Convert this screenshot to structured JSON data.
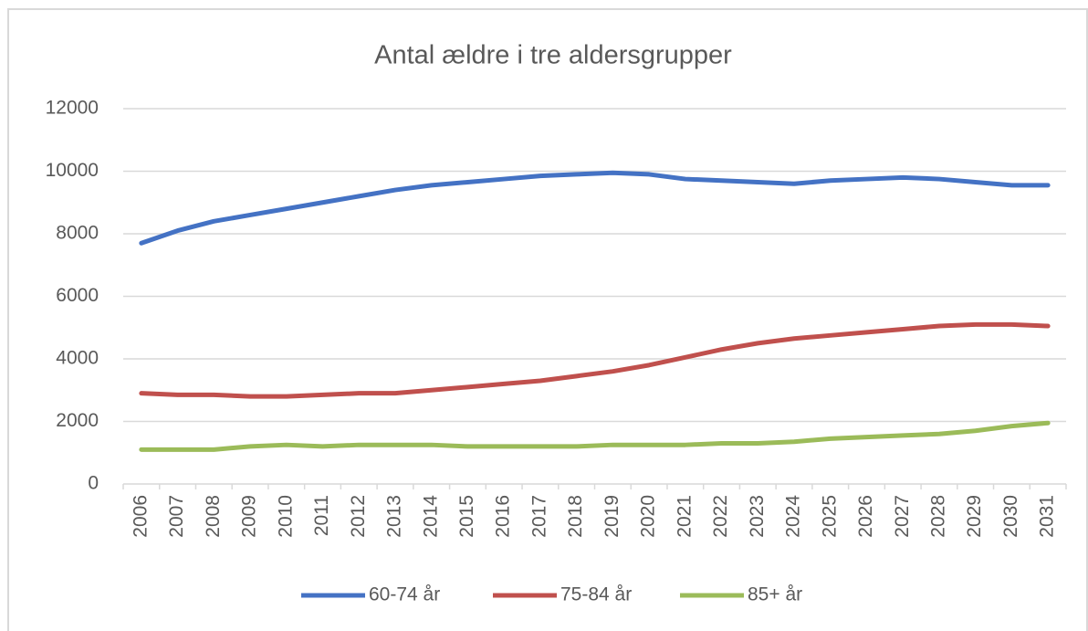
{
  "chart_data": {
    "type": "line",
    "title": "Antal ældre i tre aldersgrupper",
    "categories": [
      "2006",
      "2007",
      "2008",
      "2009",
      "2010",
      "2011",
      "2012",
      "2013",
      "2014",
      "2015",
      "2016",
      "2017",
      "2018",
      "2019",
      "2020",
      "2021",
      "2022",
      "2023",
      "2024",
      "2025",
      "2026",
      "2027",
      "2028",
      "2029",
      "2030",
      "2031"
    ],
    "series": [
      {
        "name": "60-74 år",
        "color": "#4472c4",
        "values": [
          7700,
          8100,
          8400,
          8600,
          8800,
          9000,
          9200,
          9400,
          9550,
          9650,
          9750,
          9850,
          9900,
          9950,
          9900,
          9750,
          9700,
          9650,
          9600,
          9700,
          9750,
          9800,
          9750,
          9650,
          9550,
          9550
        ]
      },
      {
        "name": "75-84 år",
        "color": "#c0504d",
        "values": [
          2900,
          2850,
          2850,
          2800,
          2800,
          2850,
          2900,
          2900,
          3000,
          3100,
          3200,
          3300,
          3450,
          3600,
          3800,
          4050,
          4300,
          4500,
          4650,
          4750,
          4850,
          4950,
          5050,
          5100,
          5100,
          5050
        ]
      },
      {
        "name": "85+ år",
        "color": "#9bbb59",
        "values": [
          1100,
          1100,
          1100,
          1200,
          1250,
          1200,
          1250,
          1250,
          1250,
          1200,
          1200,
          1200,
          1200,
          1250,
          1250,
          1250,
          1300,
          1300,
          1350,
          1450,
          1500,
          1550,
          1600,
          1700,
          1850,
          1950
        ]
      }
    ],
    "ylim": [
      0,
      12000
    ],
    "yticks": [
      0,
      2000,
      4000,
      6000,
      8000,
      10000,
      12000
    ],
    "grid": true,
    "legend": "bottom"
  }
}
